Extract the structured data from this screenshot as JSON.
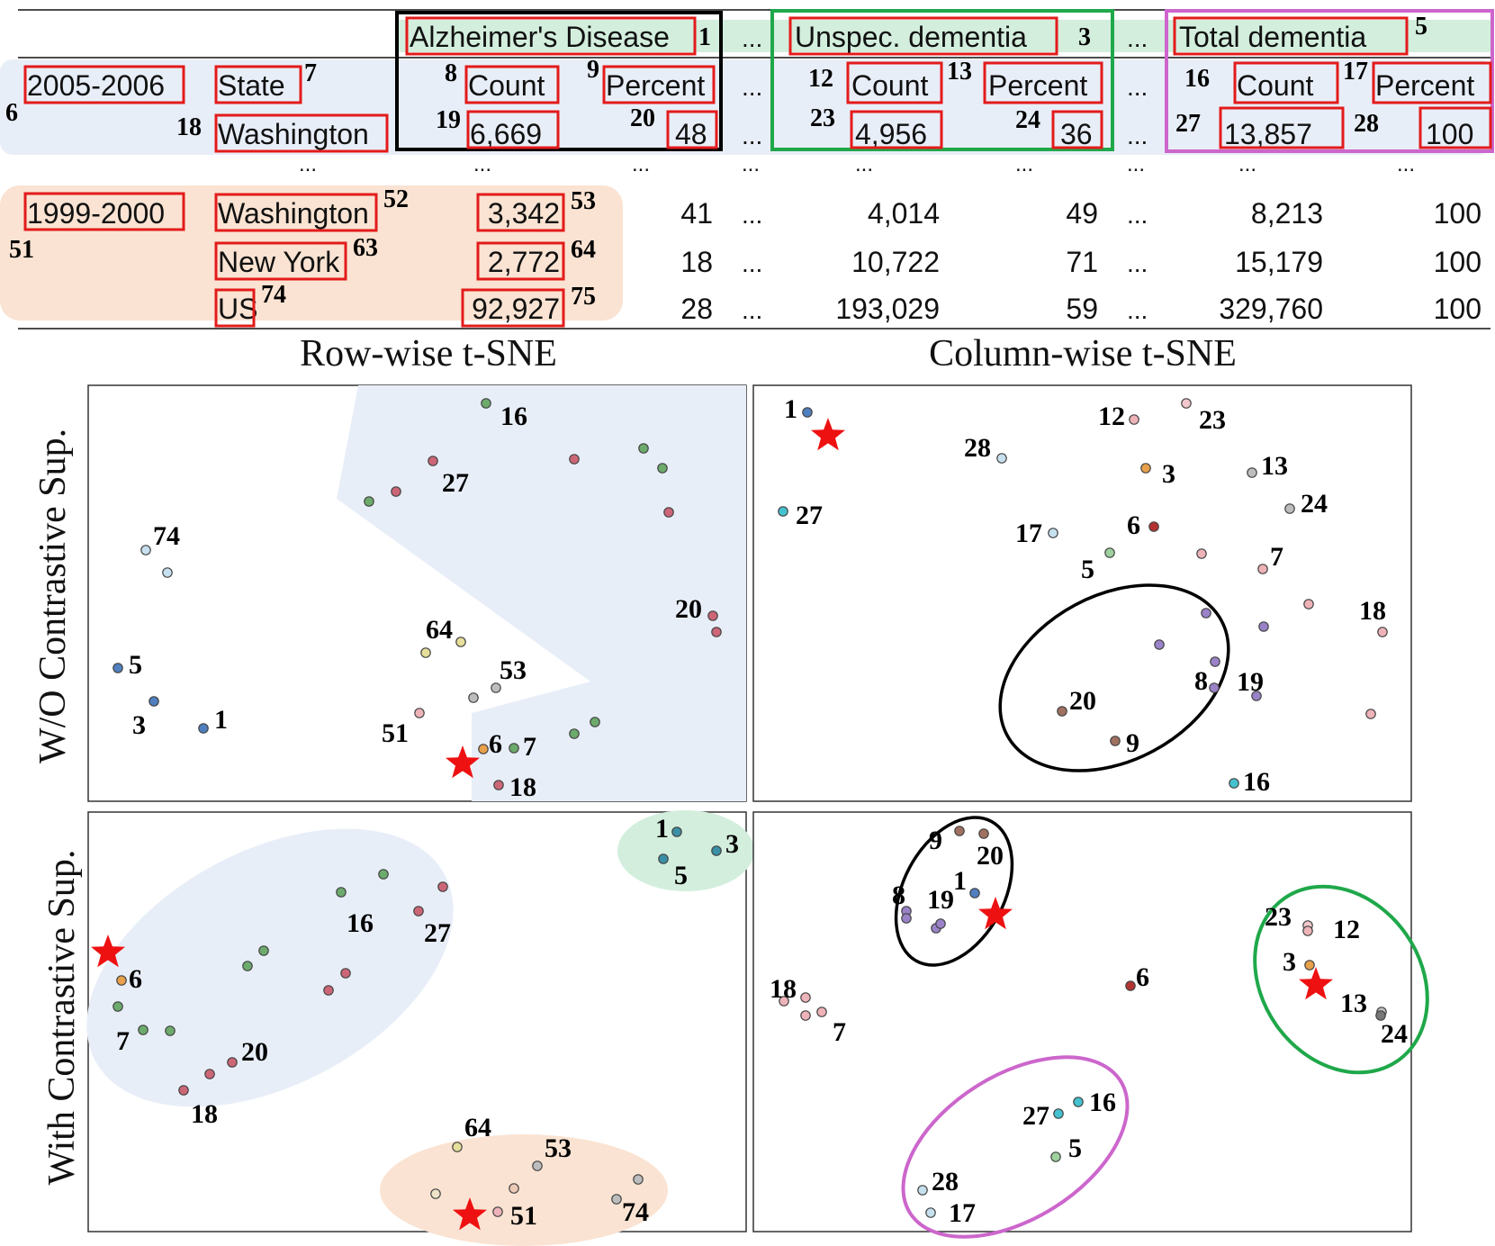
{
  "table": {
    "col_headers": {
      "alz": "Alzheimer's Disease",
      "unspec": "Unspec. dementia",
      "total": "Total dementia"
    },
    "col_header_ids": {
      "alz": "1",
      "unspec": "3",
      "total": "5"
    },
    "ellipsis": "...",
    "sub_headers": {
      "year": "2005-2006",
      "state": "State",
      "count": "Count",
      "percent": "Percent"
    },
    "sub_header_ids": {
      "year": "6",
      "state": "7",
      "alz_count": "8",
      "alz_percent": "9",
      "unspec_count": "12",
      "unspec_percent": "13",
      "total_count": "16",
      "total_percent": "17"
    },
    "row_2005": {
      "state": "Washington",
      "state_id": "18",
      "alz_count": "6,669",
      "alz_count_id": "19",
      "alz_percent": "48",
      "alz_percent_id": "20",
      "unspec_count": "4,956",
      "unspec_count_id": "23",
      "unspec_percent": "36",
      "unspec_percent_id": "24",
      "total_count": "13,857",
      "total_count_id": "27",
      "total_percent": "100",
      "total_percent_id": "28"
    },
    "rows_1999": {
      "year": "1999-2000",
      "year_id": "51",
      "rows": [
        {
          "state": "Washington",
          "state_id": "52",
          "alz_count": "3,342",
          "alz_count_id": "53",
          "alz_percent": "41",
          "unspec_count": "4,014",
          "unspec_percent": "49",
          "total_count": "8,213",
          "total_percent": "100"
        },
        {
          "state": "New York",
          "state_id": "63",
          "alz_count": "2,772",
          "alz_count_id": "64",
          "alz_percent": "18",
          "unspec_count": "10,722",
          "unspec_percent": "71",
          "total_count": "15,179",
          "total_percent": "100"
        },
        {
          "state": "US",
          "state_id": "74",
          "alz_count": "92,927",
          "alz_count_id": "75",
          "alz_percent": "28",
          "unspec_count": "193,029",
          "unspec_percent": "59",
          "total_count": "329,760",
          "total_percent": "100"
        }
      ]
    }
  },
  "plots": {
    "col_titles": [
      "Row-wise t-SNE",
      "Column-wise t-SNE"
    ],
    "row_titles": [
      "W/O Contrastive Sup.",
      "With Contrastive Sup."
    ],
    "colors": {
      "blue_bg": "#e8eef8",
      "green_bg": "#d3eedd",
      "orange_bg": "#fae3d2",
      "star": "#ee1111",
      "black_box": "#000000",
      "green_box": "#1fa84a",
      "purple_box": "#cc66cc",
      "red_box": "#e31b1b"
    },
    "panels": [
      {
        "id": "row-wo",
        "labels": [
          "16",
          "27",
          "74",
          "20",
          "64",
          "5",
          "53",
          "3",
          "1",
          "51",
          "6",
          "7",
          "18"
        ]
      },
      {
        "id": "col-wo",
        "labels": [
          "1",
          "12",
          "23",
          "28",
          "3",
          "13",
          "27",
          "24",
          "17",
          "6",
          "5",
          "7",
          "18",
          "20",
          "8",
          "19",
          "9",
          "16"
        ]
      },
      {
        "id": "row-with",
        "labels": [
          "1",
          "3",
          "5",
          "16",
          "27",
          "6",
          "7",
          "20",
          "18",
          "64",
          "53",
          "51",
          "74"
        ]
      },
      {
        "id": "col-with",
        "labels": [
          "9",
          "20",
          "1",
          "8",
          "19",
          "23",
          "12",
          "3",
          "13",
          "24",
          "18",
          "7",
          "6",
          "27",
          "16",
          "5",
          "28",
          "17"
        ]
      }
    ]
  }
}
